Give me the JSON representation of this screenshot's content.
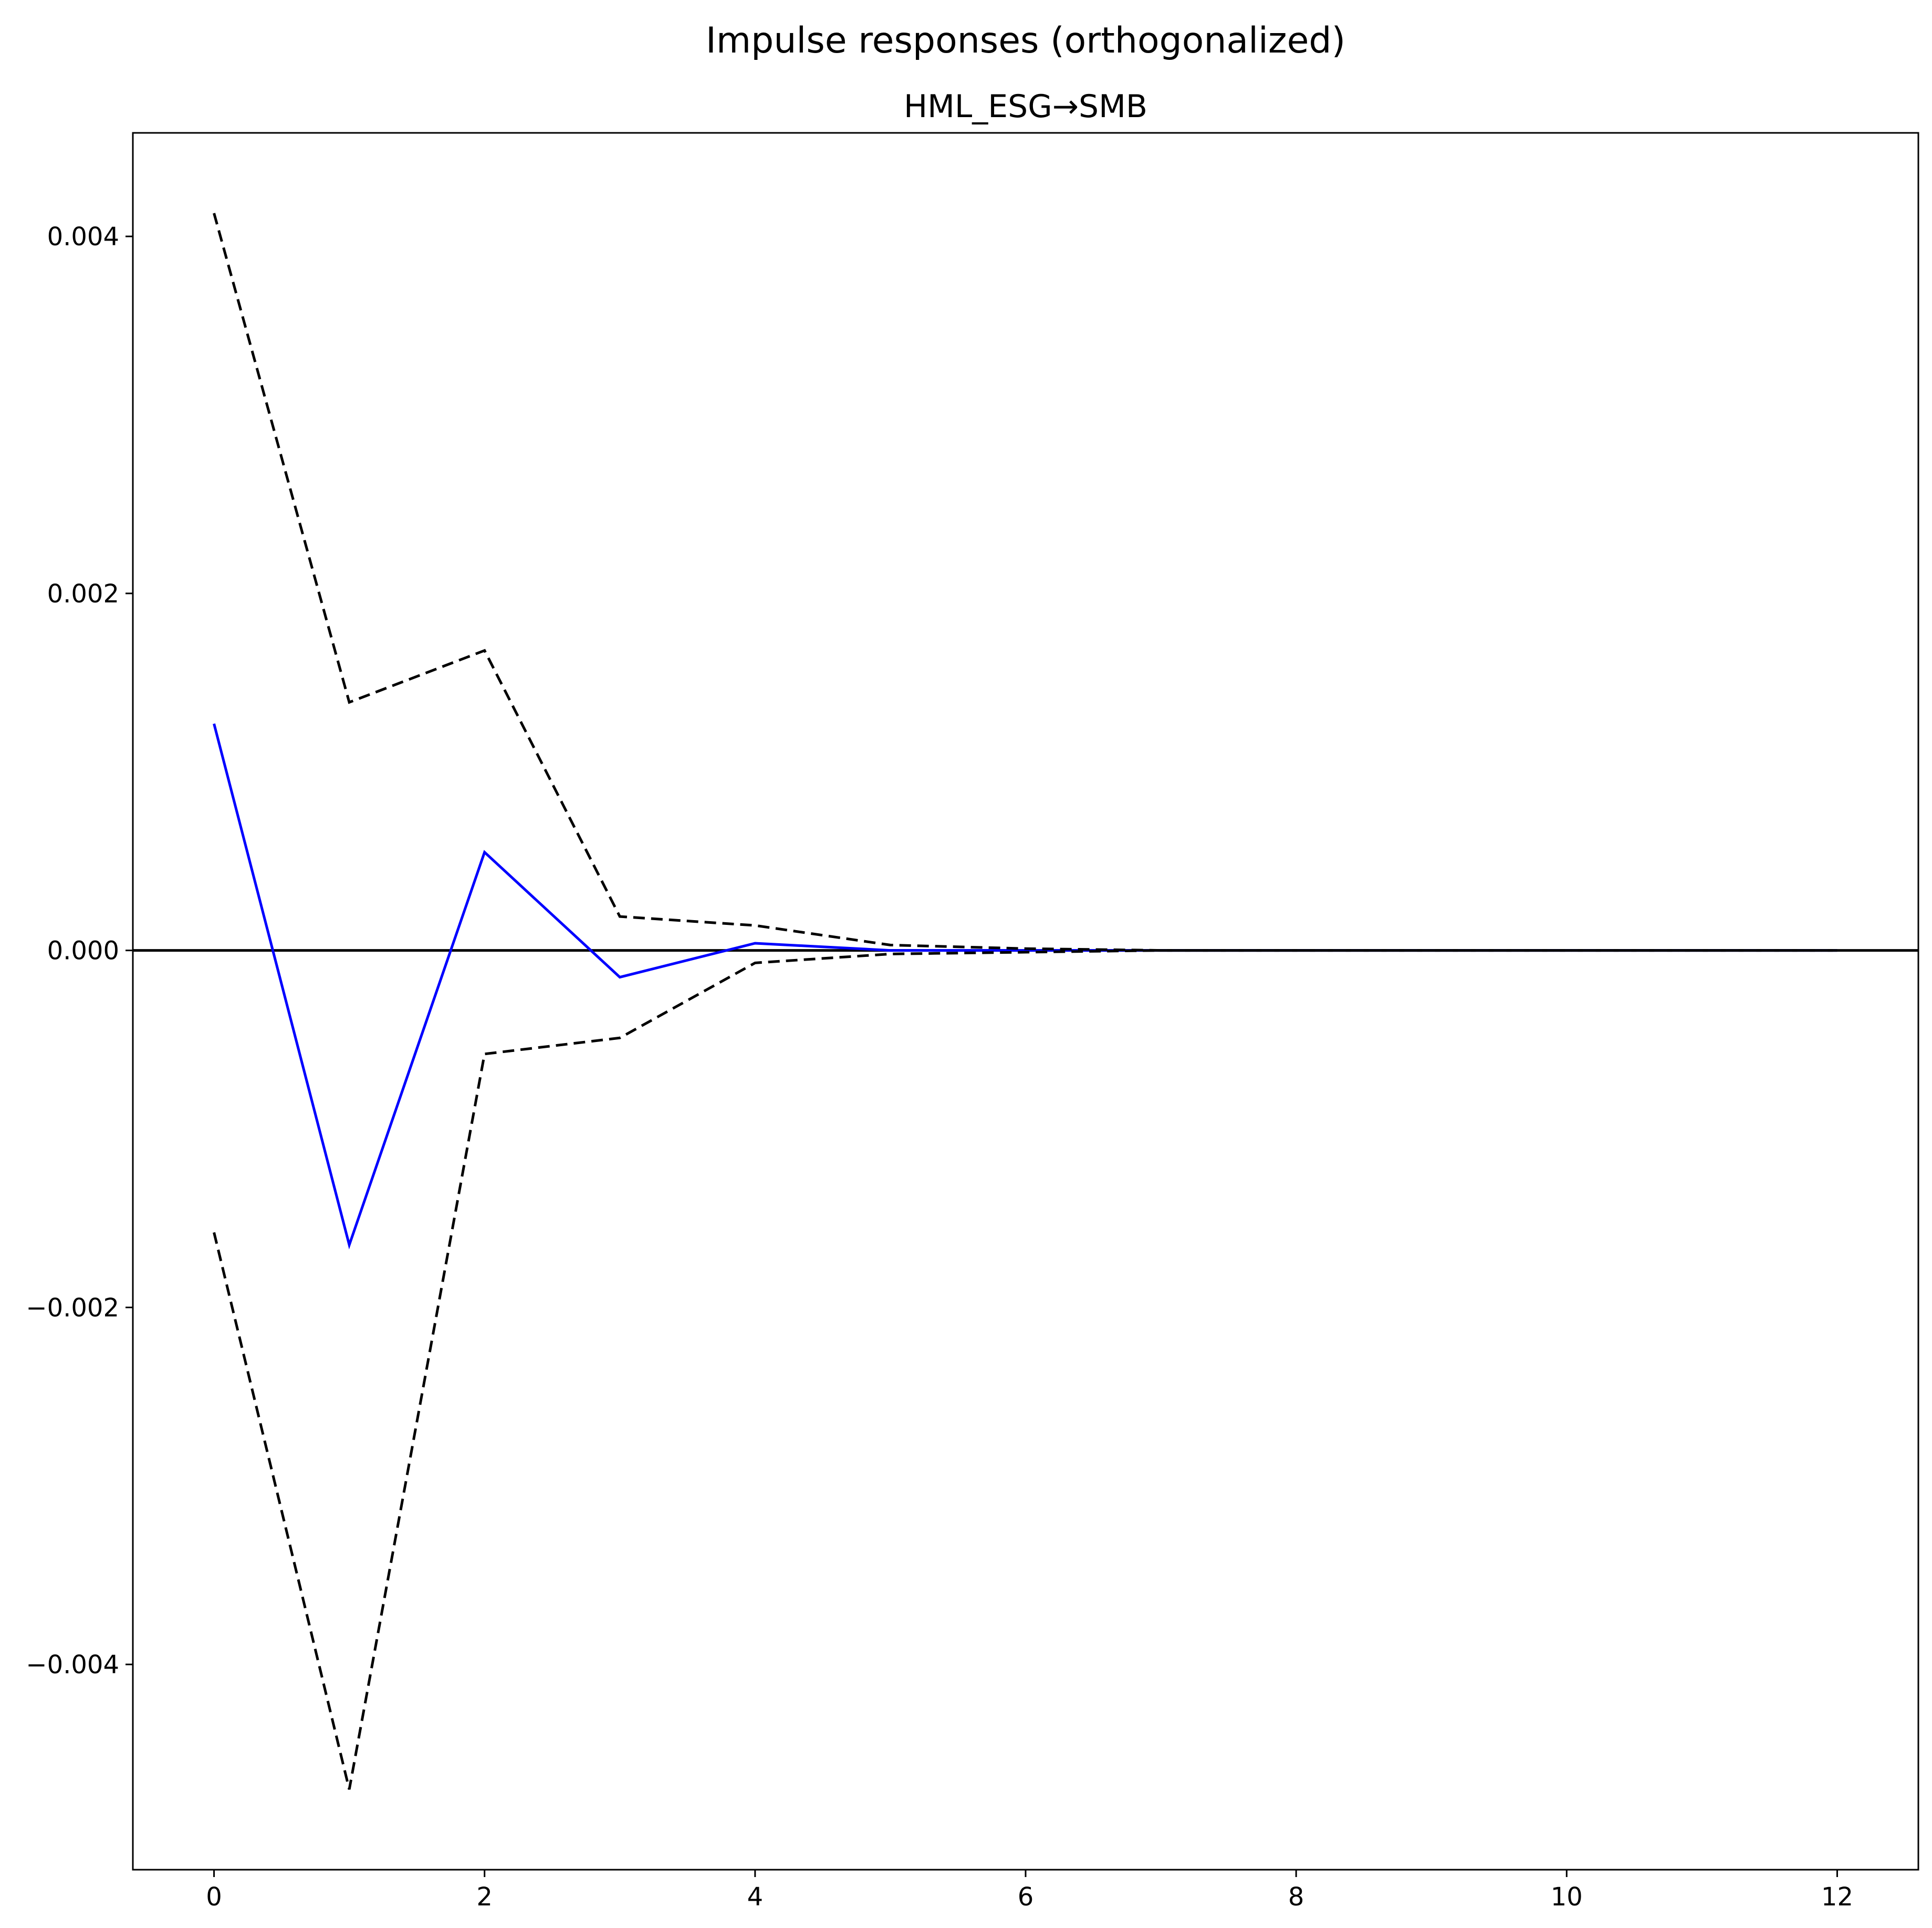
{
  "chart_data": {
    "type": "line",
    "title": "Impulse responses (orthogonalized)",
    "subtitle": "HML_ESG→SMB",
    "xlabel": "",
    "ylabel": "",
    "xlim": [
      -0.6,
      12.6
    ],
    "ylim": [
      -0.00515,
      0.00458
    ],
    "grid": false,
    "x": [
      0,
      1,
      2,
      3,
      4,
      5,
      6,
      7,
      8,
      9,
      10,
      11,
      12
    ],
    "x_ticks": [
      0,
      2,
      4,
      6,
      8,
      10,
      12
    ],
    "x_tick_labels": [
      "0",
      "2",
      "4",
      "6",
      "8",
      "10",
      "12"
    ],
    "y_ticks": [
      -0.004,
      -0.002,
      0.0,
      0.002,
      0.004
    ],
    "y_tick_labels": [
      "−0.004",
      "−0.002",
      "0.000",
      "0.002",
      "0.004"
    ],
    "zero_line": 0,
    "series": [
      {
        "role": "response",
        "color": "#0000ff",
        "style": "solid",
        "values": [
          0.00127,
          -0.00165,
          0.00055,
          -0.00015,
          4e-05,
          0.0,
          0.0,
          0.0,
          0.0,
          0.0,
          0.0,
          0.0,
          0.0
        ]
      },
      {
        "role": "upper-band",
        "color": "#000000",
        "style": "dashed",
        "values": [
          0.00413,
          0.00139,
          0.00168,
          0.00019,
          0.00014,
          3e-05,
          1e-05,
          0.0,
          0.0,
          0.0,
          0.0,
          0.0,
          0.0
        ]
      },
      {
        "role": "lower-band",
        "color": "#000000",
        "style": "dashed",
        "values": [
          -0.00158,
          -0.0047,
          -0.00058,
          -0.00049,
          -7e-05,
          -2e-05,
          -1e-05,
          0.0,
          0.0,
          0.0,
          0.0,
          0.0,
          0.0
        ]
      }
    ]
  }
}
